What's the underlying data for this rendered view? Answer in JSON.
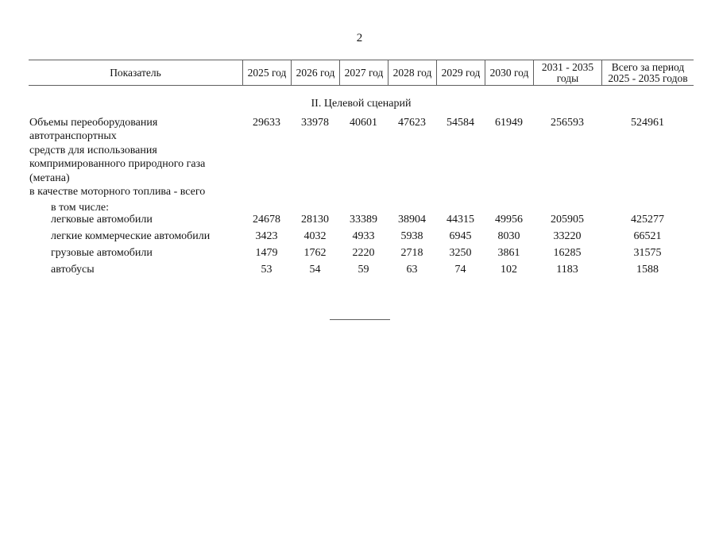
{
  "page": {
    "number": "2"
  },
  "table": {
    "columns": [
      "Показатель",
      "2025 год",
      "2026 год",
      "2027 год",
      "2028 год",
      "2029 год",
      "2030 год",
      "2031 - 2035\nгоды",
      "Всего за период\n2025 - 2035 годов"
    ],
    "section_title": "II. Целевой сценарий",
    "rows": [
      {
        "label": "Объемы переоборудования автотранспортных\nсредств для использования\nкомпримированного природного газа (метана)\nв качестве моторного топлива - всего",
        "values": [
          "29633",
          "33978",
          "40601",
          "47623",
          "54584",
          "61949",
          "256593",
          "524961"
        ]
      },
      {
        "label": "в том числе:",
        "values": []
      },
      {
        "label": "легковые автомобили",
        "values": [
          "24678",
          "28130",
          "33389",
          "38904",
          "44315",
          "49956",
          "205905",
          "425277"
        ]
      },
      {
        "label": "легкие коммерческие автомобили",
        "values": [
          "3423",
          "4032",
          "4933",
          "5938",
          "6945",
          "8030",
          "33220",
          "66521"
        ]
      },
      {
        "label": "грузовые автомобили",
        "values": [
          "1479",
          "1762",
          "2220",
          "2718",
          "3250",
          "3861",
          "16285",
          "31575"
        ]
      },
      {
        "label": "автобусы",
        "values": [
          "53",
          "54",
          "59",
          "63",
          "74",
          "102",
          "1183",
          "1588"
        ]
      }
    ]
  }
}
